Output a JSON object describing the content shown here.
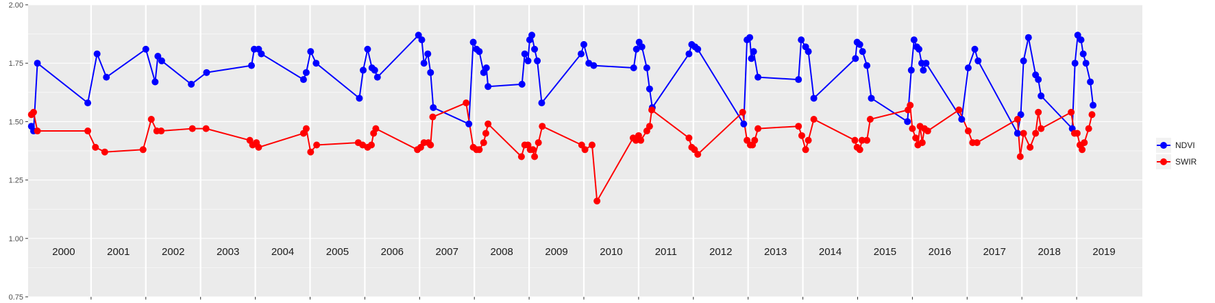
{
  "chart_data": {
    "type": "line",
    "ylim": [
      0.75,
      2.0
    ],
    "yticks": [
      0.75,
      1.0,
      1.25,
      1.5,
      1.75,
      2.0
    ],
    "ytick_labels": [
      "0.75",
      "1.00",
      "1.25",
      "1.50",
      "1.75",
      "2.00"
    ],
    "xlim": [
      1999.85,
      2020.2
    ],
    "years": [
      "2000",
      "2001",
      "2002",
      "2003",
      "2004",
      "2005",
      "2006",
      "2007",
      "2008",
      "2009",
      "2010",
      "2011",
      "2012",
      "2013",
      "2014",
      "2015",
      "2016",
      "2017",
      "2018",
      "2019"
    ],
    "grid": true,
    "legend_position": "right",
    "series": [
      {
        "name": "NDVI",
        "color": "#0000ff",
        "points": [
          [
            1999.91,
            1.48
          ],
          [
            1999.95,
            1.46
          ],
          [
            2000.02,
            1.75
          ],
          [
            2000.94,
            1.58
          ],
          [
            2001.11,
            1.79
          ],
          [
            2001.28,
            1.69
          ],
          [
            2002.0,
            1.81
          ],
          [
            2002.17,
            1.67
          ],
          [
            2002.22,
            1.78
          ],
          [
            2002.29,
            1.76
          ],
          [
            2002.83,
            1.66
          ],
          [
            2003.11,
            1.71
          ],
          [
            2003.93,
            1.74
          ],
          [
            2003.98,
            1.81
          ],
          [
            2004.06,
            1.81
          ],
          [
            2004.11,
            1.79
          ],
          [
            2004.88,
            1.68
          ],
          [
            2004.93,
            1.71
          ],
          [
            2005.01,
            1.8
          ],
          [
            2005.11,
            1.75
          ],
          [
            2005.9,
            1.6
          ],
          [
            2005.97,
            1.72
          ],
          [
            2006.05,
            1.81
          ],
          [
            2006.13,
            1.73
          ],
          [
            2006.18,
            1.72
          ],
          [
            2006.23,
            1.69
          ],
          [
            2006.98,
            1.87
          ],
          [
            2007.04,
            1.85
          ],
          [
            2007.08,
            1.75
          ],
          [
            2007.15,
            1.79
          ],
          [
            2007.2,
            1.71
          ],
          [
            2007.25,
            1.56
          ],
          [
            2007.9,
            1.49
          ],
          [
            2007.98,
            1.84
          ],
          [
            2008.04,
            1.81
          ],
          [
            2008.09,
            1.8
          ],
          [
            2008.17,
            1.71
          ],
          [
            2008.22,
            1.73
          ],
          [
            2008.25,
            1.65
          ],
          [
            2008.87,
            1.66
          ],
          [
            2008.92,
            1.79
          ],
          [
            2008.98,
            1.76
          ],
          [
            2009.01,
            1.85
          ],
          [
            2009.05,
            1.87
          ],
          [
            2009.1,
            1.81
          ],
          [
            2009.15,
            1.76
          ],
          [
            2009.23,
            1.58
          ],
          [
            2009.95,
            1.79
          ],
          [
            2010.0,
            1.83
          ],
          [
            2010.09,
            1.75
          ],
          [
            2010.18,
            1.74
          ],
          [
            2010.91,
            1.73
          ],
          [
            2010.96,
            1.81
          ],
          [
            2011.01,
            1.84
          ],
          [
            2011.06,
            1.82
          ],
          [
            2011.15,
            1.73
          ],
          [
            2011.2,
            1.64
          ],
          [
            2011.25,
            1.56
          ],
          [
            2011.92,
            1.79
          ],
          [
            2011.97,
            1.83
          ],
          [
            2012.03,
            1.82
          ],
          [
            2012.08,
            1.81
          ],
          [
            2012.92,
            1.49
          ],
          [
            2012.98,
            1.85
          ],
          [
            2013.03,
            1.86
          ],
          [
            2013.06,
            1.77
          ],
          [
            2013.1,
            1.8
          ],
          [
            2013.18,
            1.69
          ],
          [
            2013.92,
            1.68
          ],
          [
            2013.97,
            1.85
          ],
          [
            2014.05,
            1.82
          ],
          [
            2014.1,
            1.8
          ],
          [
            2014.2,
            1.6
          ],
          [
            2014.96,
            1.77
          ],
          [
            2014.99,
            1.84
          ],
          [
            2015.04,
            1.83
          ],
          [
            2015.09,
            1.8
          ],
          [
            2015.17,
            1.74
          ],
          [
            2015.25,
            1.6
          ],
          [
            2015.91,
            1.5
          ],
          [
            2015.98,
            1.72
          ],
          [
            2016.03,
            1.85
          ],
          [
            2016.08,
            1.82
          ],
          [
            2016.12,
            1.81
          ],
          [
            2016.17,
            1.75
          ],
          [
            2016.2,
            1.72
          ],
          [
            2016.25,
            1.75
          ],
          [
            2016.9,
            1.51
          ],
          [
            2017.02,
            1.73
          ],
          [
            2017.14,
            1.81
          ],
          [
            2017.2,
            1.76
          ],
          [
            2017.92,
            1.45
          ],
          [
            2017.98,
            1.53
          ],
          [
            2018.03,
            1.76
          ],
          [
            2018.12,
            1.86
          ],
          [
            2018.25,
            1.7
          ],
          [
            2018.3,
            1.68
          ],
          [
            2018.35,
            1.61
          ],
          [
            2018.92,
            1.47
          ],
          [
            2018.97,
            1.75
          ],
          [
            2019.02,
            1.87
          ],
          [
            2019.08,
            1.85
          ],
          [
            2019.12,
            1.79
          ],
          [
            2019.17,
            1.75
          ],
          [
            2019.25,
            1.67
          ],
          [
            2019.3,
            1.57
          ]
        ]
      },
      {
        "name": "SWIR",
        "color": "#ff0000",
        "points": [
          [
            1999.91,
            1.53
          ],
          [
            1999.95,
            1.54
          ],
          [
            2000.02,
            1.46
          ],
          [
            2000.94,
            1.46
          ],
          [
            2001.08,
            1.39
          ],
          [
            2001.25,
            1.37
          ],
          [
            2001.95,
            1.38
          ],
          [
            2002.1,
            1.51
          ],
          [
            2002.2,
            1.46
          ],
          [
            2002.28,
            1.46
          ],
          [
            2002.85,
            1.47
          ],
          [
            2003.1,
            1.47
          ],
          [
            2003.9,
            1.42
          ],
          [
            2003.95,
            1.4
          ],
          [
            2004.02,
            1.41
          ],
          [
            2004.06,
            1.39
          ],
          [
            2004.88,
            1.45
          ],
          [
            2004.93,
            1.47
          ],
          [
            2005.01,
            1.37
          ],
          [
            2005.12,
            1.4
          ],
          [
            2005.88,
            1.41
          ],
          [
            2005.96,
            1.4
          ],
          [
            2006.05,
            1.39
          ],
          [
            2006.12,
            1.4
          ],
          [
            2006.16,
            1.45
          ],
          [
            2006.2,
            1.47
          ],
          [
            2006.96,
            1.38
          ],
          [
            2007.02,
            1.39
          ],
          [
            2007.08,
            1.41
          ],
          [
            2007.16,
            1.41
          ],
          [
            2007.2,
            1.4
          ],
          [
            2007.24,
            1.52
          ],
          [
            2007.85,
            1.58
          ],
          [
            2007.98,
            1.39
          ],
          [
            2008.04,
            1.38
          ],
          [
            2008.09,
            1.38
          ],
          [
            2008.17,
            1.41
          ],
          [
            2008.21,
            1.45
          ],
          [
            2008.25,
            1.49
          ],
          [
            2008.86,
            1.35
          ],
          [
            2008.92,
            1.4
          ],
          [
            2008.98,
            1.4
          ],
          [
            2009.02,
            1.38
          ],
          [
            2009.07,
            1.38
          ],
          [
            2009.1,
            1.35
          ],
          [
            2009.17,
            1.41
          ],
          [
            2009.24,
            1.48
          ],
          [
            2009.96,
            1.4
          ],
          [
            2010.02,
            1.38
          ],
          [
            2010.15,
            1.4
          ],
          [
            2010.24,
            1.16
          ],
          [
            2010.9,
            1.43
          ],
          [
            2010.95,
            1.42
          ],
          [
            2011.0,
            1.44
          ],
          [
            2011.04,
            1.42
          ],
          [
            2011.15,
            1.46
          ],
          [
            2011.2,
            1.48
          ],
          [
            2011.24,
            1.55
          ],
          [
            2011.92,
            1.43
          ],
          [
            2011.97,
            1.39
          ],
          [
            2012.02,
            1.38
          ],
          [
            2012.08,
            1.36
          ],
          [
            2012.9,
            1.54
          ],
          [
            2012.98,
            1.42
          ],
          [
            2013.04,
            1.4
          ],
          [
            2013.08,
            1.4
          ],
          [
            2013.12,
            1.42
          ],
          [
            2013.18,
            1.47
          ],
          [
            2013.92,
            1.48
          ],
          [
            2013.98,
            1.44
          ],
          [
            2014.05,
            1.38
          ],
          [
            2014.1,
            1.42
          ],
          [
            2014.2,
            1.51
          ],
          [
            2014.95,
            1.42
          ],
          [
            2014.99,
            1.39
          ],
          [
            2015.04,
            1.38
          ],
          [
            2015.08,
            1.42
          ],
          [
            2015.17,
            1.42
          ],
          [
            2015.23,
            1.51
          ],
          [
            2015.92,
            1.55
          ],
          [
            2015.96,
            1.57
          ],
          [
            2016.0,
            1.47
          ],
          [
            2016.06,
            1.43
          ],
          [
            2016.1,
            1.4
          ],
          [
            2016.14,
            1.48
          ],
          [
            2016.18,
            1.41
          ],
          [
            2016.22,
            1.47
          ],
          [
            2016.28,
            1.46
          ],
          [
            2016.85,
            1.55
          ],
          [
            2017.02,
            1.46
          ],
          [
            2017.1,
            1.41
          ],
          [
            2017.18,
            1.41
          ],
          [
            2017.92,
            1.51
          ],
          [
            2017.97,
            1.35
          ],
          [
            2018.03,
            1.45
          ],
          [
            2018.15,
            1.39
          ],
          [
            2018.25,
            1.45
          ],
          [
            2018.3,
            1.54
          ],
          [
            2018.35,
            1.47
          ],
          [
            2018.9,
            1.54
          ],
          [
            2018.96,
            1.45
          ],
          [
            2019.01,
            1.45
          ],
          [
            2019.06,
            1.4
          ],
          [
            2019.1,
            1.38
          ],
          [
            2019.14,
            1.41
          ],
          [
            2019.22,
            1.47
          ],
          [
            2019.28,
            1.53
          ]
        ]
      }
    ]
  }
}
